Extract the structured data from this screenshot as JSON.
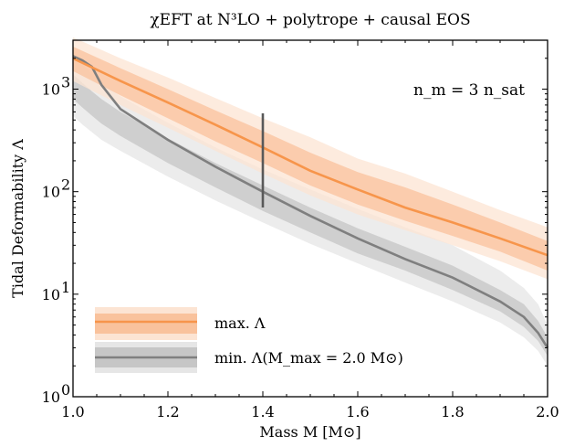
{
  "chart_data": {
    "type": "line",
    "title": "χEFT at N³LO + polytrope + causal EOS",
    "xlabel": "Mass M [M⊙]",
    "ylabel": "Tidal Deformability Λ",
    "xlim": [
      1.0,
      2.0
    ],
    "ylim": [
      1,
      3000
    ],
    "yscale": "log",
    "grid": false,
    "x_ticks": [
      1.0,
      1.2,
      1.4,
      1.6,
      1.8,
      2.0
    ],
    "x_tick_labels": [
      "1.0",
      "1.2",
      "1.4",
      "1.6",
      "1.8",
      "2.0"
    ],
    "y_ticks": [
      1,
      10,
      100,
      1000
    ],
    "y_tick_labels": [
      "10",
      "10",
      "10",
      "10"
    ],
    "y_tick_exponents": [
      "0",
      "1",
      "2",
      "3"
    ],
    "annotation": "n_m = 3 n_sat",
    "legend_position": "lower-left",
    "colors": {
      "max_line": "#f7954b",
      "max_band_inner": "#f9c29c",
      "max_band_outer": "#fce4d3",
      "min_line": "#7f7f7f",
      "min_band_inner": "#c6c6c6",
      "min_band_outer": "#e6e6e6",
      "marker_line": "#595959"
    },
    "series": [
      {
        "name": "max. Λ",
        "x": [
          1.0,
          1.1,
          1.2,
          1.3,
          1.4,
          1.5,
          1.6,
          1.7,
          1.8,
          1.9,
          2.0
        ],
        "values": [
          2000,
          1200,
          740,
          450,
          270,
          160,
          105,
          70,
          50,
          35,
          24
        ],
        "band_inner": {
          "upper": [
            2600,
            1600,
            1000,
            620,
            390,
            240,
            155,
            110,
            75,
            50,
            33
          ],
          "lower": [
            1500,
            870,
            520,
            310,
            190,
            115,
            75,
            52,
            37,
            26,
            17
          ]
        },
        "band_outer": {
          "upper": [
            3200,
            2000,
            1300,
            820,
            520,
            340,
            210,
            150,
            100,
            66,
            45
          ],
          "lower": [
            1200,
            700,
            420,
            250,
            150,
            92,
            60,
            42,
            30,
            21,
            14
          ]
        }
      },
      {
        "name": "min. Λ(M_max = 2.0 M⊙)",
        "x": [
          1.0,
          1.02,
          1.04,
          1.06,
          1.1,
          1.2,
          1.3,
          1.4,
          1.5,
          1.6,
          1.7,
          1.8,
          1.9,
          1.95,
          1.98,
          2.0
        ],
        "values": [
          2100,
          1900,
          1650,
          1100,
          640,
          320,
          175,
          100,
          58,
          35,
          22,
          14.5,
          8.5,
          6.0,
          4.2,
          3.0
        ],
        "band_inner": {
          "upper": [
            1400,
            1150,
            950,
            800,
            600,
            330,
            190,
            115,
            70,
            44,
            29,
            19,
            11,
            8.0,
            5.5,
            3.8
          ],
          "lower": [
            800,
            660,
            550,
            460,
            350,
            190,
            110,
            65,
            40,
            25,
            17,
            11,
            6.8,
            4.8,
            3.5,
            2.5
          ]
        },
        "band_outer": {
          "upper": [
            2200,
            1750,
            1400,
            1150,
            850,
            470,
            270,
            165,
            105,
            68,
            45,
            30,
            17,
            11.5,
            8.0,
            5.0
          ],
          "lower": [
            550,
            450,
            380,
            320,
            250,
            140,
            82,
            50,
            31,
            20,
            13,
            8.5,
            5.3,
            3.8,
            2.8,
            2.0
          ]
        }
      }
    ],
    "marker": {
      "x": 1.4,
      "y_low": 70,
      "y_high": 580
    }
  }
}
